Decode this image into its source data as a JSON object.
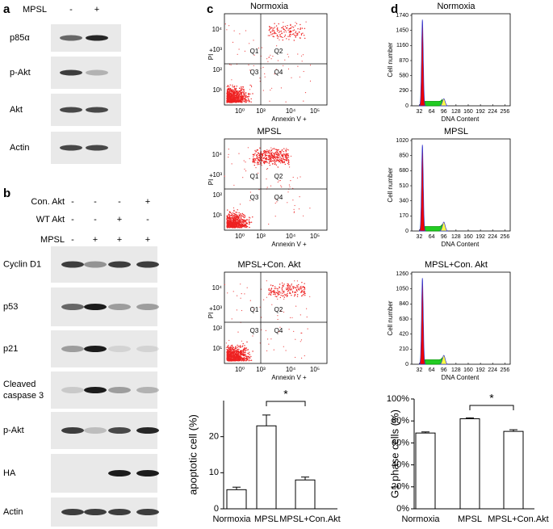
{
  "figure": {
    "panel_labels": [
      "a",
      "b",
      "c",
      "d"
    ],
    "a": {
      "treatment": {
        "name": "MPSL",
        "states": [
          "-",
          "+"
        ]
      },
      "rows": [
        "p85α",
        "p-Akt",
        "Akt",
        "Actin"
      ]
    },
    "b": {
      "treatments": [
        {
          "name": "Con. Akt",
          "states": [
            "-",
            "-",
            "-",
            "+"
          ]
        },
        {
          "name": "WT Akt",
          "states": [
            "-",
            "-",
            "+",
            "-"
          ]
        },
        {
          "name": "MPSL",
          "states": [
            "-",
            "+",
            "+",
            "+"
          ]
        }
      ],
      "rows": [
        [
          "Cyclin D1"
        ],
        [
          "p53"
        ],
        [
          "p21"
        ],
        [
          "Cleaved",
          "caspase 3"
        ],
        [
          "p-Akt"
        ],
        [
          "HA"
        ],
        [
          "Actin"
        ]
      ]
    },
    "c": {
      "plots": [
        {
          "title": "Normoxia"
        },
        {
          "title": "MPSL"
        },
        {
          "title": "MPSL+Con. Akt"
        }
      ],
      "x_label": "Annexin V +",
      "y_label": "PI +",
      "x_ticks": [
        "10⁰",
        "10³",
        "10⁴",
        "10⁵"
      ],
      "y_ticks": [
        "10¹",
        "10²",
        "10³",
        "10⁴"
      ],
      "quadrants": [
        "Q1",
        "Q2",
        "Q3",
        "Q4"
      ]
    },
    "d": {
      "plots": [
        {
          "title": "Normoxia",
          "ylim": [
            0,
            1740
          ],
          "yticks": [
            0,
            290,
            580,
            870,
            1160,
            1450,
            1740
          ]
        },
        {
          "title": "MPSL",
          "ylim": [
            0,
            1020
          ],
          "yticks": [
            0,
            170,
            340,
            510,
            680,
            850,
            1020
          ]
        },
        {
          "title": "MPSL+Con. Akt",
          "ylim": [
            0,
            1260
          ],
          "yticks": [
            0,
            210,
            420,
            630,
            840,
            1050,
            1260
          ]
        }
      ],
      "x_label": "DNA Content",
      "y_label": "Cell number",
      "xlim": [
        12,
        270
      ],
      "xticks": [
        32,
        64,
        96,
        128,
        160,
        192,
        224,
        256
      ]
    }
  },
  "chart_data": [
    {
      "type": "bar",
      "y_label": "apoptotic cell (%)",
      "categories": [
        "Normoxia",
        "MPSL",
        "MPSL+Con.Akt"
      ],
      "values": [
        5.3,
        23,
        8
      ],
      "errors": [
        0.7,
        3,
        0.8
      ],
      "color": "#ffffff",
      "ylim": [
        0,
        30
      ],
      "yticks": [
        0,
        10,
        20
      ],
      "annotation": "*"
    },
    {
      "type": "bar",
      "y_label": "G1 phase cells (%)",
      "categories": [
        "Normoxia",
        "MPSL",
        "MPSL+Con.Akt"
      ],
      "values": [
        69,
        82,
        70.5
      ],
      "errors": [
        1,
        0.8,
        1.5
      ],
      "color": "#ffffff",
      "ylim": [
        0,
        100
      ],
      "yticks": [
        {
          "value": 0,
          "label": "0%"
        },
        {
          "value": 20,
          "label": "20%"
        },
        {
          "value": 40,
          "label": "40%"
        },
        {
          "value": 60,
          "label": "60%"
        },
        {
          "value": 80,
          "label": "80%"
        },
        {
          "value": 100,
          "label": "100%"
        }
      ],
      "annotation": "*"
    }
  ]
}
